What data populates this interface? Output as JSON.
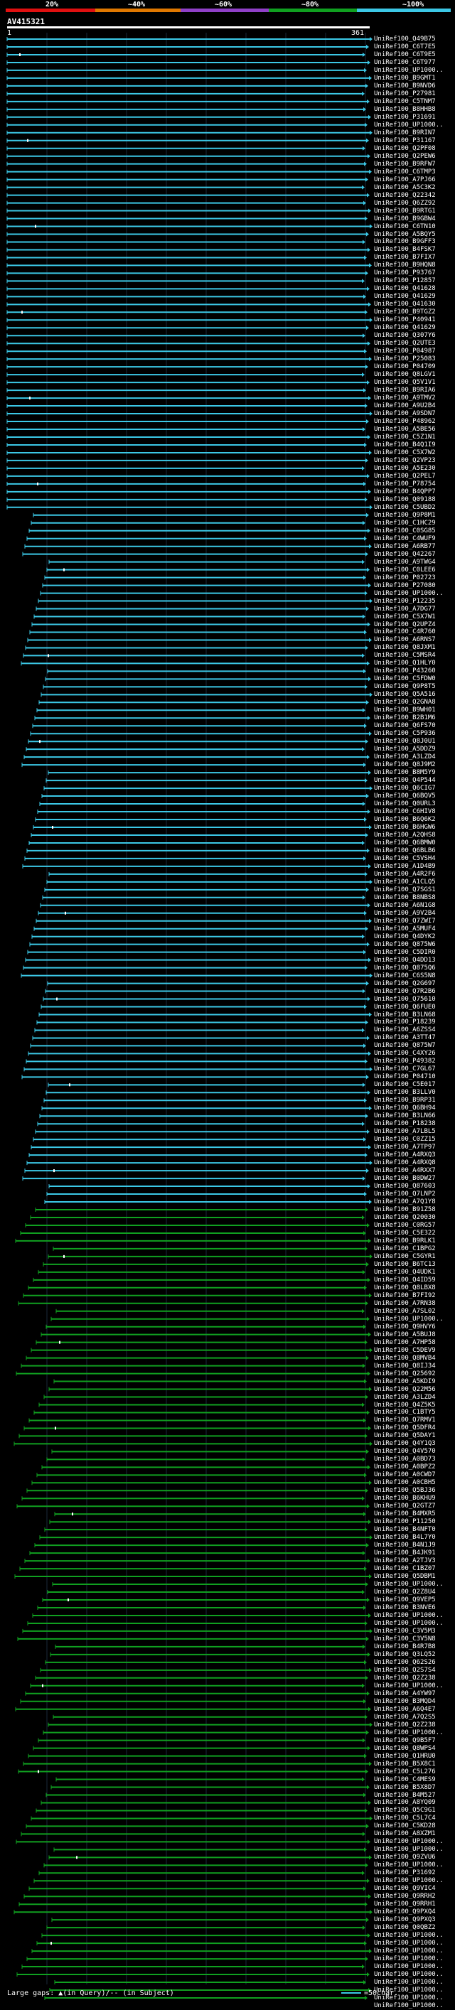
{
  "query": {
    "name": "AV415321",
    "start": "1",
    "end": "361"
  },
  "legend": {
    "labels": [
      "20%",
      "~40%",
      "~60%",
      "~80%",
      "~100%"
    ],
    "colors": [
      "#e01010",
      "#e07800",
      "#9040c8",
      "#10a020",
      "#3cc8e6"
    ]
  },
  "footer": {
    "text": "Large gaps: ▲(in Query)/-- (in Subject)",
    "scale": "=50char."
  },
  "hits": [
    "UniRef100_Q49B75",
    "UniRef100_C6T7E5",
    "UniRef100_C6T9E5",
    "UniRef100_C6T977",
    "UniRef100_UP1000..",
    "UniRef100_B9GMT1",
    "UniRef100_B9NVD6",
    "UniRef100_P27981",
    "UniRef100_C5TNM7",
    "UniRef100_B8HHB8",
    "UniRef100_P31691",
    "UniRef100_UP1000..",
    "UniRef100_B9RIN7",
    "UniRef100_P31167",
    "UniRef100_Q2PF08",
    "UniRef100_Q2PEW6",
    "UniRef100_B9RFW7",
    "UniRef100_C6TMP3",
    "UniRef100_A7PJ66",
    "UniRef100_A5C3K2",
    "UniRef100_Q22342",
    "UniRef100_Q6ZZ92",
    "UniRef100_B9RTG1",
    "UniRef100_B9GBW4",
    "UniRef100_C6TN10",
    "UniRef100_A5BQY5",
    "UniRef100_B9GFF3",
    "UniRef100_B4FSK7",
    "UniRef100_B7FIX7",
    "UniRef100_B9HQN8",
    "UniRef100_P93767",
    "UniRef100_P12857",
    "UniRef100_Q41628",
    "UniRef100_Q41629",
    "UniRef100_Q41630",
    "UniRef100_B9TGZ2",
    "UniRef100_P40941",
    "UniRef100_Q41629",
    "UniRef100_Q307Y6",
    "UniRef100_Q2UTE3",
    "UniRef100_P04987",
    "UniRef100_P25083",
    "UniRef100_P04709",
    "UniRef100_Q8LGV1",
    "UniRef100_Q5V1V1",
    "UniRef100_B9RIA6",
    "UniRef100_A9TMV2",
    "UniRef100_A9U2B4",
    "UniRef100_A9SDN7",
    "UniRef100_P48962",
    "UniRef100_A5BE56",
    "UniRef100_C5Z1N1",
    "UniRef100_B4Q1I9",
    "UniRef100_C5X7W2",
    "UniRef100_Q2VP23",
    "UniRef100_A5E230",
    "UniRef100_Q2PEL7",
    "UniRef100_P78754",
    "UniRef100_B4QPP7",
    "UniRef100_Q09188",
    "UniRef100_C5UBD2",
    "UniRef100_Q9P8M1",
    "UniRef100_C1HC29",
    "UniRef100_C0SG85",
    "UniRef100_C4WUF9",
    "UniRef100_A6RB77",
    "UniRef100_Q42267",
    "UniRef100_A9TWG4",
    "UniRef100_C0LEE6",
    "UniRef100_P02723",
    "UniRef100_P27080",
    "UniRef100_UP1000..",
    "UniRef100_P12235",
    "UniRef100_A7DG77",
    "UniRef100_C5X7W1",
    "UniRef100_Q2UPZ4",
    "UniRef100_C4R760",
    "UniRef100_A6RNS7",
    "UniRef100_Q8JXM1",
    "UniRef100_C5MSR4",
    "UniRef100_Q1HLY0",
    "UniRef100_P43260",
    "UniRef100_C5FDW0",
    "UniRef100_Q9P8T5",
    "UniRef100_Q5A516",
    "UniRef100_Q2GNA8",
    "UniRef100_B9WH01",
    "UniRef100_B2B1M6",
    "UniRef100_Q6FS70",
    "UniRef100_C5P936",
    "UniRef100_Q8J0U1",
    "UniRef100_A5DDZ9",
    "UniRef100_A3LZD4",
    "UniRef100_Q8J9M2",
    "UniRef100_B8M5Y9",
    "UniRef100_Q4P544",
    "UniRef100_Q6CIG7",
    "UniRef100_Q6BQV5",
    "UniRef100_Q0URL3",
    "UniRef100_C6HIV8",
    "UniRef100_B6Q6K2",
    "UniRef100_B6HGW6",
    "UniRef100_A2QHS8",
    "UniRef100_Q6BMW0",
    "UniRef100_Q6BLB6",
    "UniRef100_C5VSH4",
    "UniRef100_A1D4B9",
    "UniRef100_A4R2F6",
    "UniRef100_A1CLQ5",
    "UniRef100_Q7SGS1",
    "UniRef100_B8NBS8",
    "UniRef100_A6N1G8",
    "UniRef100_A9V2B4",
    "UniRef100_Q7ZWI7",
    "UniRef100_A5MUF4",
    "UniRef100_Q4DYK2",
    "UniRef100_Q875W6",
    "UniRef100_C5DIR0",
    "UniRef100_Q4DD13",
    "UniRef100_Q875Q6",
    "UniRef100_C6S5N8",
    "UniRef100_Q2G697",
    "UniRef100_Q7R2B6",
    "UniRef100_Q75610",
    "UniRef100_Q6FUE0",
    "UniRef100_B3LN68",
    "UniRef100_P18239",
    "UniRef100_A6ZSS4",
    "UniRef100_A3TT47",
    "UniRef100_Q875W7",
    "UniRef100_C4XY26",
    "UniRef100_P49382",
    "UniRef100_C7GL67",
    "UniRef100_P04710",
    "UniRef100_C5E017",
    "UniRef100_B3LLV0",
    "UniRef100_B9RP31",
    "UniRef100_Q6BH94",
    "UniRef100_B3LN66",
    "UniRef100_P18238",
    "UniRef100_A7LBL5",
    "UniRef100_C0ZZ15",
    "UniRef100_A7TP97",
    "UniRef100_A4RXQ3",
    "UniRef100_A4RXQ8",
    "UniRef100_A4RXX7",
    "UniRef100_B0DW27",
    "UniRef100_Q87603",
    "UniRef100_Q7LNP2",
    "UniRef100_A7Q1Y8",
    "UniRef100_B91Z58",
    "UniRef100_Q20030",
    "UniRef100_C0RG57",
    "UniRef100_C5E322",
    "UniRef100_B9RLK1",
    "UniRef100_C1BPG2",
    "UniRef100_C5GYR1",
    "UniRef100_B6TC13",
    "UniRef100_Q4UDK1",
    "UniRef100_Q4ID59",
    "UniRef100_Q8LBX8",
    "UniRef100_B7FI92",
    "UniRef100_A7RN38",
    "UniRef100_A7SL02",
    "UniRef100_UP1000..",
    "UniRef100_Q9HVY6",
    "UniRef100_A5BUJ8",
    "UniRef100_A7HP58",
    "UniRef100_C5DEV9",
    "UniRef100_Q8MVB4",
    "UniRef100_Q8IJ34",
    "UniRef100_Q25692",
    "UniRef100_A5KDI9",
    "UniRef100_Q22M56",
    "UniRef100_A3LZD4",
    "UniRef100_Q4Z5K5",
    "UniRef100_C1BTY5",
    "UniRef100_Q7RMV1",
    "UniRef100_Q5DFR4",
    "UniRef100_Q5DAY1",
    "UniRef100_Q4Y1Q3",
    "UniRef100_Q4V570",
    "UniRef100_A0BD73",
    "UniRef100_A0BPZ2",
    "UniRef100_A0CWD7",
    "UniRef100_A0CBH5",
    "UniRef100_Q5BJ36",
    "UniRef100_B6KHU9",
    "UniRef100_Q2GTZ7",
    "UniRef100_B4MXR5",
    "UniRef100_P11250",
    "UniRef100_B4NFT0",
    "UniRef100_B4L7Y0",
    "UniRef100_B4N1J9",
    "UniRef100_B4JK91",
    "UniRef100_A2TJV3",
    "UniRef100_C1BZ07",
    "UniRef100_Q5DBM1",
    "UniRef100_UP1000..",
    "UniRef100_Q2Z8U4",
    "UniRef100_Q9VEP5",
    "UniRef100_B3NVE6",
    "UniRef100_UP1000..",
    "UniRef100_UP1000..",
    "UniRef100_C3V5M3",
    "UniRef100_C3V5N8",
    "UniRef100_B4R7B8",
    "UniRef100_Q3LQ52",
    "UniRef100_Q62S26",
    "UniRef100_Q2S7S4",
    "UniRef100_Q2Z238",
    "UniRef100_UP1000..",
    "UniRef100_A4YW97",
    "UniRef100_B3MQD4",
    "UniRef100_A6Q4E7",
    "UniRef100_A7Q2S5",
    "UniRef100_Q2Z238",
    "UniRef100_UP1000..",
    "UniRef100_Q9B5F7",
    "UniRef100_Q8WPS4",
    "UniRef100_Q1HRU0",
    "UniRef100_B5X8C1",
    "UniRef100_C5L276",
    "UniRef100_C4MES9",
    "UniRef100_B5X8D7",
    "UniRef100_B4M527",
    "UniRef100_A8YQ09",
    "UniRef100_Q5C9G1",
    "UniRef100_C5L7C4",
    "UniRef100_C5KD28",
    "UniRef100_A8XZM1",
    "UniRef100_UP1000..",
    "UniRef100_UP1000..",
    "UniRef100_Q9ZVU6",
    "UniRef100_UP1000..",
    "UniRef100_P31692",
    "UniRef100_UP1000..",
    "UniRef100_Q9VIC4",
    "UniRef100_Q9RRH2",
    "UniRef100_Q9RRH1",
    "UniRef100_Q9PXQ4",
    "UniRef100_Q9PXQ3",
    "UniRef100_Q0QBZ2",
    "UniRef100_UP1000..",
    "UniRef100_UP1000..",
    "UniRef100_UP1000..",
    "UniRef100_UP1000..",
    "UniRef100_UP1000..",
    "UniRef100_UP1000..",
    "UniRef100_UP1000..",
    "UniRef100_UP1000..",
    "UniRef100_UP1000..",
    "UniRef100_UP1000.."
  ]
}
